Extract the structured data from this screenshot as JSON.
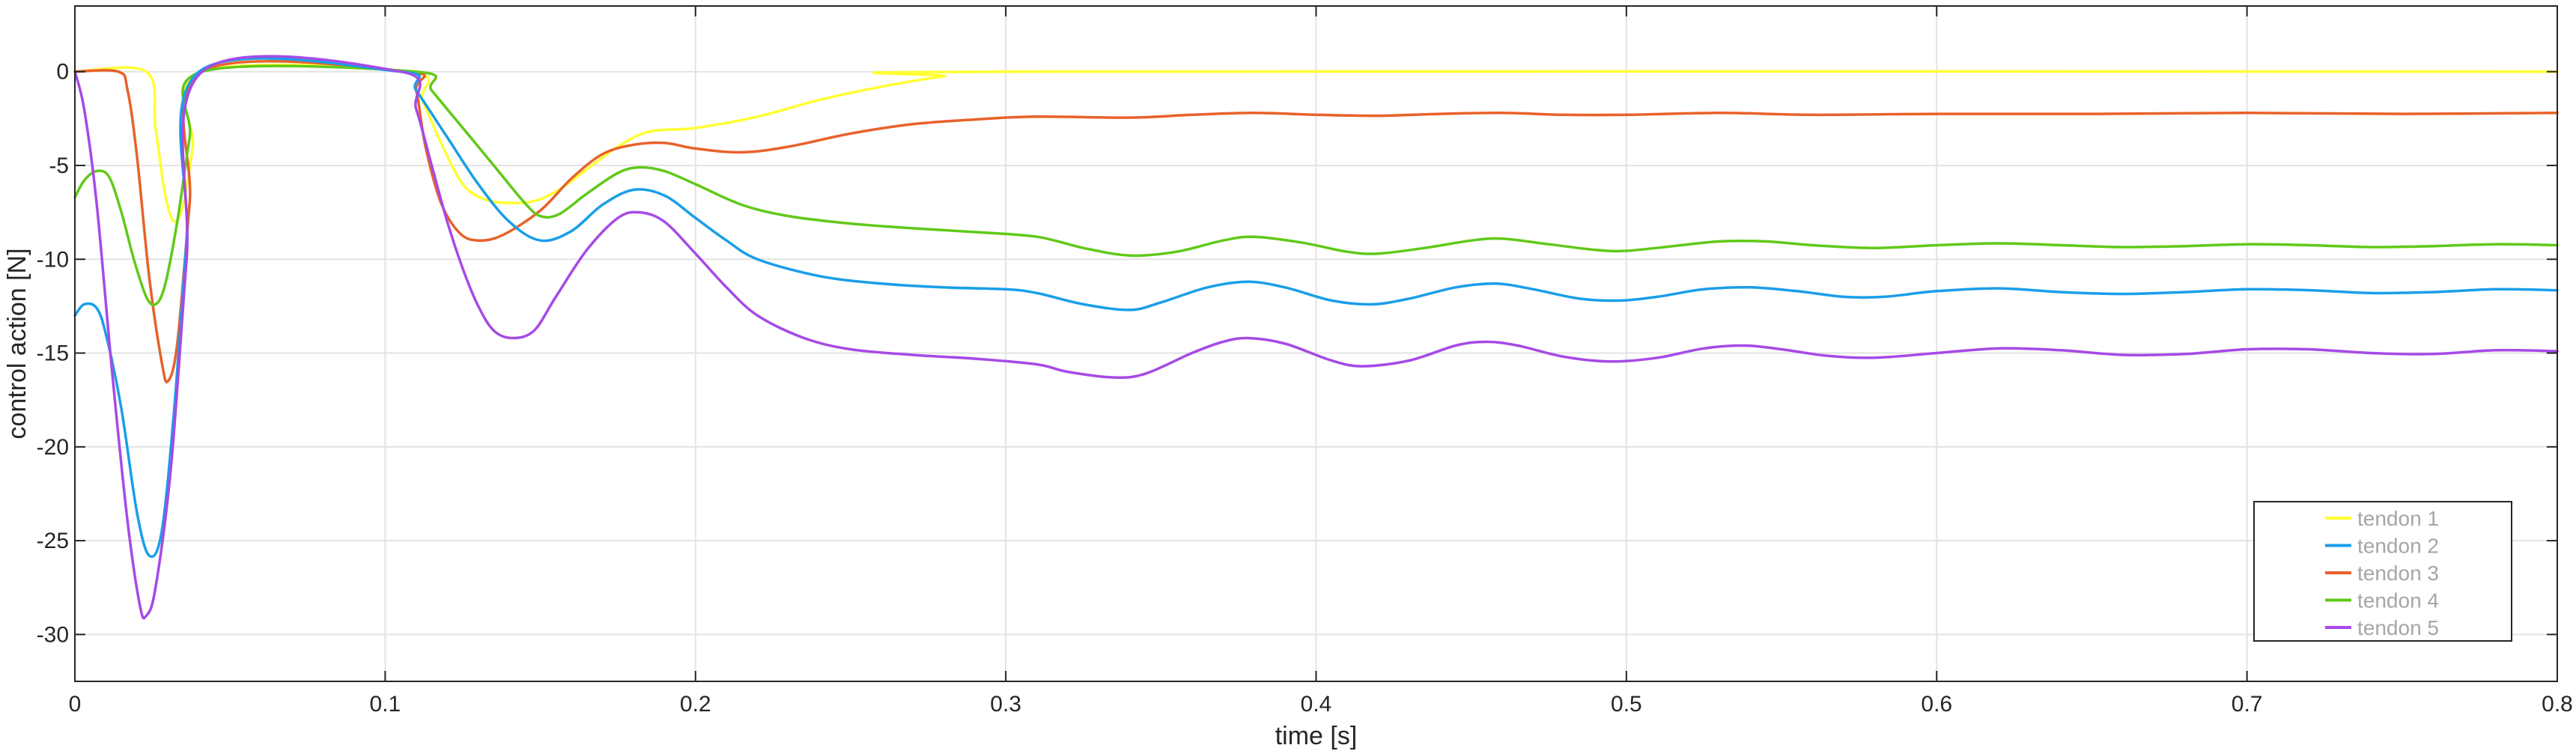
{
  "chart_data": {
    "type": "line",
    "title": "",
    "xlabel": "time [s]",
    "ylabel": "control action [N]",
    "xlim": [
      0,
      0.8
    ],
    "ylim": [
      -32.5,
      3.5
    ],
    "xticks": [
      0,
      0.1,
      0.2,
      0.3,
      0.4,
      0.5,
      0.6,
      0.7,
      0.8
    ],
    "xtick_labels": [
      "0",
      "0.1",
      "0.2",
      "0.3",
      "0.4",
      "0.5",
      "0.6",
      "0.7",
      "0.8"
    ],
    "yticks": [
      0,
      -5,
      -10,
      -15,
      -20,
      -25,
      -30
    ],
    "ytick_labels": [
      "0",
      "-5",
      "-10",
      "-15",
      "-20",
      "-25",
      "-30"
    ],
    "grid": true,
    "legend_position": "bottom-right",
    "series": [
      {
        "name": "tendon 1",
        "color": "#ffff33",
        "points": [
          [
            0,
            0
          ],
          [
            0.023,
            0
          ],
          [
            0.026,
            -3
          ],
          [
            0.029,
            -6.5
          ],
          [
            0.032,
            -8
          ],
          [
            0.035,
            -7
          ],
          [
            0.038,
            -4
          ],
          [
            0.041,
            0
          ],
          [
            0.108,
            0
          ],
          [
            0.112,
            -1.5
          ],
          [
            0.118,
            -3.8
          ],
          [
            0.125,
            -6
          ],
          [
            0.132,
            -6.8
          ],
          [
            0.14,
            -7
          ],
          [
            0.148,
            -6.9
          ],
          [
            0.156,
            -6.3
          ],
          [
            0.165,
            -5.2
          ],
          [
            0.175,
            -4
          ],
          [
            0.185,
            -3.2
          ],
          [
            0.2,
            -3
          ],
          [
            0.22,
            -2.4
          ],
          [
            0.24,
            -1.5
          ],
          [
            0.26,
            -0.8
          ],
          [
            0.28,
            -0.25
          ],
          [
            0.3,
            0
          ],
          [
            0.8,
            0
          ]
        ]
      },
      {
        "name": "tendon 2",
        "color": "#1a9ee8",
        "points": [
          [
            0,
            -13
          ],
          [
            0.003,
            -12.4
          ],
          [
            0.007,
            -12.6
          ],
          [
            0.01,
            -14
          ],
          [
            0.015,
            -18
          ],
          [
            0.02,
            -23.5
          ],
          [
            0.024,
            -25.8
          ],
          [
            0.028,
            -24.5
          ],
          [
            0.032,
            -18
          ],
          [
            0.036,
            -9
          ],
          [
            0.04,
            0
          ],
          [
            0.105,
            0
          ],
          [
            0.11,
            -1
          ],
          [
            0.12,
            -3.5
          ],
          [
            0.13,
            -6
          ],
          [
            0.14,
            -8
          ],
          [
            0.15,
            -9
          ],
          [
            0.16,
            -8.5
          ],
          [
            0.17,
            -7.1
          ],
          [
            0.18,
            -6.3
          ],
          [
            0.19,
            -6.6
          ],
          [
            0.2,
            -7.8
          ],
          [
            0.21,
            -9
          ],
          [
            0.22,
            -10
          ],
          [
            0.24,
            -10.9
          ],
          [
            0.26,
            -11.3
          ],
          [
            0.28,
            -11.5
          ],
          [
            0.3,
            -11.6
          ],
          [
            0.31,
            -11.8
          ],
          [
            0.325,
            -12.4
          ],
          [
            0.34,
            -12.7
          ],
          [
            0.35,
            -12.3
          ],
          [
            0.365,
            -11.5
          ],
          [
            0.378,
            -11.2
          ],
          [
            0.39,
            -11.5
          ],
          [
            0.405,
            -12.2
          ],
          [
            0.418,
            -12.4
          ],
          [
            0.43,
            -12.1
          ],
          [
            0.445,
            -11.5
          ],
          [
            0.458,
            -11.3
          ],
          [
            0.47,
            -11.6
          ],
          [
            0.485,
            -12.1
          ],
          [
            0.498,
            -12.2
          ],
          [
            0.51,
            -12
          ],
          [
            0.525,
            -11.6
          ],
          [
            0.54,
            -11.5
          ],
          [
            0.555,
            -11.7
          ],
          [
            0.57,
            -12
          ],
          [
            0.583,
            -12
          ],
          [
            0.6,
            -11.7
          ],
          [
            0.62,
            -11.55
          ],
          [
            0.64,
            -11.75
          ],
          [
            0.66,
            -11.85
          ],
          [
            0.68,
            -11.75
          ],
          [
            0.7,
            -11.6
          ],
          [
            0.72,
            -11.65
          ],
          [
            0.74,
            -11.8
          ],
          [
            0.76,
            -11.75
          ],
          [
            0.78,
            -11.6
          ],
          [
            0.8,
            -11.65
          ]
        ]
      },
      {
        "name": "tendon 3",
        "color": "#e8622a",
        "points": [
          [
            0,
            0
          ],
          [
            0.014,
            0
          ],
          [
            0.017,
            -1
          ],
          [
            0.02,
            -4.5
          ],
          [
            0.024,
            -11
          ],
          [
            0.028,
            -15.5
          ],
          [
            0.03,
            -16.5
          ],
          [
            0.033,
            -14.5
          ],
          [
            0.037,
            -7
          ],
          [
            0.041,
            0
          ],
          [
            0.107,
            0
          ],
          [
            0.11,
            -1
          ],
          [
            0.113,
            -4
          ],
          [
            0.118,
            -7
          ],
          [
            0.124,
            -8.6
          ],
          [
            0.13,
            -9
          ],
          [
            0.138,
            -8.7
          ],
          [
            0.15,
            -7.4
          ],
          [
            0.16,
            -5.7
          ],
          [
            0.17,
            -4.4
          ],
          [
            0.18,
            -3.9
          ],
          [
            0.19,
            -3.8
          ],
          [
            0.2,
            -4.1
          ],
          [
            0.215,
            -4.3
          ],
          [
            0.23,
            -4
          ],
          [
            0.25,
            -3.3
          ],
          [
            0.27,
            -2.8
          ],
          [
            0.29,
            -2.55
          ],
          [
            0.31,
            -2.4
          ],
          [
            0.34,
            -2.45
          ],
          [
            0.36,
            -2.3
          ],
          [
            0.38,
            -2.2
          ],
          [
            0.4,
            -2.3
          ],
          [
            0.42,
            -2.35
          ],
          [
            0.44,
            -2.25
          ],
          [
            0.46,
            -2.2
          ],
          [
            0.48,
            -2.3
          ],
          [
            0.5,
            -2.3
          ],
          [
            0.53,
            -2.2
          ],
          [
            0.56,
            -2.3
          ],
          [
            0.6,
            -2.25
          ],
          [
            0.65,
            -2.25
          ],
          [
            0.7,
            -2.2
          ],
          [
            0.75,
            -2.25
          ],
          [
            0.8,
            -2.2
          ]
        ]
      },
      {
        "name": "tendon 4",
        "color": "#61c919",
        "points": [
          [
            0,
            -6.7
          ],
          [
            0.003,
            -5.8
          ],
          [
            0.007,
            -5.3
          ],
          [
            0.011,
            -5.6
          ],
          [
            0.015,
            -7.5
          ],
          [
            0.019,
            -10
          ],
          [
            0.023,
            -12
          ],
          [
            0.026,
            -12.4
          ],
          [
            0.029,
            -11.4
          ],
          [
            0.033,
            -8
          ],
          [
            0.037,
            -3.5
          ],
          [
            0.041,
            0
          ],
          [
            0.11,
            0
          ],
          [
            0.115,
            -1
          ],
          [
            0.125,
            -3
          ],
          [
            0.135,
            -5
          ],
          [
            0.145,
            -7
          ],
          [
            0.15,
            -7.7
          ],
          [
            0.156,
            -7.6
          ],
          [
            0.165,
            -6.5
          ],
          [
            0.175,
            -5.4
          ],
          [
            0.182,
            -5.1
          ],
          [
            0.19,
            -5.3
          ],
          [
            0.2,
            -6
          ],
          [
            0.215,
            -7.1
          ],
          [
            0.23,
            -7.7
          ],
          [
            0.25,
            -8.1
          ],
          [
            0.27,
            -8.35
          ],
          [
            0.29,
            -8.55
          ],
          [
            0.31,
            -8.8
          ],
          [
            0.325,
            -9.4
          ],
          [
            0.34,
            -9.8
          ],
          [
            0.355,
            -9.6
          ],
          [
            0.37,
            -9
          ],
          [
            0.38,
            -8.8
          ],
          [
            0.395,
            -9.1
          ],
          [
            0.41,
            -9.6
          ],
          [
            0.42,
            -9.7
          ],
          [
            0.435,
            -9.4
          ],
          [
            0.45,
            -9
          ],
          [
            0.46,
            -8.9
          ],
          [
            0.475,
            -9.2
          ],
          [
            0.49,
            -9.5
          ],
          [
            0.5,
            -9.55
          ],
          [
            0.515,
            -9.3
          ],
          [
            0.53,
            -9.05
          ],
          [
            0.545,
            -9.05
          ],
          [
            0.56,
            -9.25
          ],
          [
            0.58,
            -9.4
          ],
          [
            0.6,
            -9.25
          ],
          [
            0.62,
            -9.15
          ],
          [
            0.64,
            -9.25
          ],
          [
            0.66,
            -9.35
          ],
          [
            0.68,
            -9.3
          ],
          [
            0.7,
            -9.2
          ],
          [
            0.72,
            -9.25
          ],
          [
            0.74,
            -9.35
          ],
          [
            0.76,
            -9.3
          ],
          [
            0.78,
            -9.2
          ],
          [
            0.8,
            -9.25
          ]
        ]
      },
      {
        "name": "tendon 5",
        "color": "#a64ae6",
        "points": [
          [
            0,
            0
          ],
          [
            0.003,
            -2
          ],
          [
            0.007,
            -7
          ],
          [
            0.012,
            -16
          ],
          [
            0.017,
            -24
          ],
          [
            0.021,
            -28.5
          ],
          [
            0.023,
            -29
          ],
          [
            0.026,
            -27.5
          ],
          [
            0.031,
            -21
          ],
          [
            0.036,
            -10
          ],
          [
            0.041,
            0
          ],
          [
            0.105,
            0
          ],
          [
            0.11,
            -2
          ],
          [
            0.115,
            -5
          ],
          [
            0.12,
            -8
          ],
          [
            0.125,
            -10.5
          ],
          [
            0.13,
            -12.5
          ],
          [
            0.135,
            -13.8
          ],
          [
            0.141,
            -14.2
          ],
          [
            0.148,
            -13.8
          ],
          [
            0.155,
            -12
          ],
          [
            0.165,
            -9.5
          ],
          [
            0.175,
            -7.8
          ],
          [
            0.182,
            -7.5
          ],
          [
            0.19,
            -8
          ],
          [
            0.2,
            -9.7
          ],
          [
            0.21,
            -11.5
          ],
          [
            0.22,
            -13
          ],
          [
            0.235,
            -14.2
          ],
          [
            0.25,
            -14.8
          ],
          [
            0.27,
            -15.1
          ],
          [
            0.29,
            -15.3
          ],
          [
            0.31,
            -15.6
          ],
          [
            0.32,
            -16
          ],
          [
            0.335,
            -16.3
          ],
          [
            0.345,
            -16.1
          ],
          [
            0.36,
            -15
          ],
          [
            0.37,
            -14.4
          ],
          [
            0.378,
            -14.2
          ],
          [
            0.39,
            -14.5
          ],
          [
            0.405,
            -15.4
          ],
          [
            0.415,
            -15.7
          ],
          [
            0.43,
            -15.4
          ],
          [
            0.445,
            -14.6
          ],
          [
            0.455,
            -14.4
          ],
          [
            0.465,
            -14.6
          ],
          [
            0.48,
            -15.2
          ],
          [
            0.495,
            -15.45
          ],
          [
            0.51,
            -15.25
          ],
          [
            0.525,
            -14.75
          ],
          [
            0.538,
            -14.6
          ],
          [
            0.55,
            -14.8
          ],
          [
            0.565,
            -15.15
          ],
          [
            0.58,
            -15.25
          ],
          [
            0.6,
            -15
          ],
          [
            0.62,
            -14.75
          ],
          [
            0.64,
            -14.85
          ],
          [
            0.66,
            -15.1
          ],
          [
            0.68,
            -15.05
          ],
          [
            0.7,
            -14.8
          ],
          [
            0.72,
            -14.8
          ],
          [
            0.74,
            -15
          ],
          [
            0.76,
            -15.05
          ],
          [
            0.78,
            -14.85
          ],
          [
            0.8,
            -14.9
          ]
        ]
      }
    ]
  }
}
